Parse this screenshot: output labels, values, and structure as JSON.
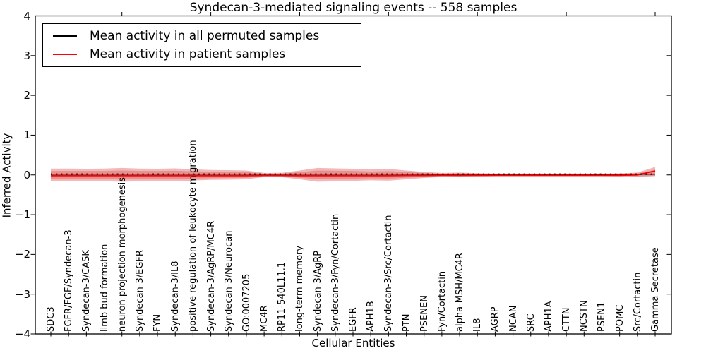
{
  "title": "Syndecan-3-mediated signaling events -- 558 samples",
  "legend": {
    "items": [
      {
        "label": "Mean activity in all permuted samples",
        "color": "#000000"
      },
      {
        "label": "Mean activity in patient samples",
        "color": "#ff0000"
      }
    ]
  },
  "axes": {
    "ylabel": "Inferred Activity",
    "xlabel": "Cellular Entities",
    "yticks": [
      "4",
      "3",
      "2",
      "1",
      "0",
      "−1",
      "−2",
      "−3",
      "−4"
    ],
    "ytick_values": [
      4,
      3,
      2,
      1,
      0,
      -1,
      -2,
      -3,
      -4
    ]
  },
  "chart_data": {
    "type": "line_with_band",
    "title": "Syndecan-3-mediated signaling events -- 558 samples",
    "xlabel": "Cellular Entities",
    "ylabel": "Inferred Activity",
    "ylim": [
      -4,
      4
    ],
    "grid": false,
    "legend_position": "upper left",
    "categories": [
      "SDC3",
      "FGFR/FGF/Syndecan-3",
      "Syndecan-3/CASK",
      "limb bud formation",
      "neuron projection morphogenesis",
      "Syndecan-3/EGFR",
      "FYN",
      "Syndecan-3/IL8",
      "positive regulation of leukocyte migration",
      "Syndecan-3/AgRP/MC4R",
      "Syndecan-3/Neurocan",
      "GO:0007205",
      "MC4R",
      "RP11-540L11.1",
      "long-term memory",
      "Syndecan-3/AgRP",
      "Syndecan-3/Fyn/Cortactin",
      "EGFR",
      "APH1B",
      "Syndecan-3/Src/Cortactin",
      "PTN",
      "PSENEN",
      "Fyn/Cortactin",
      "alpha-MSH/MC4R",
      "IL8",
      "AGRP",
      "NCAN",
      "SRC",
      "APH1A",
      "CTTN",
      "NCSTN",
      "PSEN1",
      "POMC",
      "Src/Cortactin",
      "Gamma Secretase"
    ],
    "series": [
      {
        "name": "Mean activity in all permuted samples",
        "color": "#000000",
        "style": "solid_plus_dotted",
        "values": [
          0,
          0,
          0,
          0,
          0,
          0,
          0,
          0,
          0,
          0,
          0,
          0,
          0,
          0,
          0,
          0,
          0,
          0,
          0,
          0,
          0,
          0,
          0,
          0,
          0,
          0,
          0,
          0,
          0,
          0,
          0,
          0,
          0,
          0,
          0
        ]
      },
      {
        "name": "Mean activity in patient samples",
        "color": "#ff0000",
        "style": "solid",
        "values": [
          -0.02,
          -0.02,
          -0.02,
          -0.02,
          -0.02,
          -0.02,
          -0.02,
          -0.02,
          -0.02,
          -0.02,
          -0.02,
          -0.02,
          -0.015,
          -0.015,
          -0.02,
          -0.02,
          -0.02,
          -0.02,
          -0.02,
          -0.02,
          -0.015,
          -0.015,
          -0.01,
          -0.01,
          -0.01,
          -0.01,
          -0.01,
          -0.01,
          -0.01,
          -0.01,
          -0.01,
          -0.01,
          -0.01,
          0.0,
          0.1
        ]
      }
    ],
    "band": {
      "name": "patient activity spread",
      "color": "#dd5555",
      "layer_opacity": 0.42,
      "outer_upper": [
        0.16,
        0.16,
        0.155,
        0.16,
        0.175,
        0.16,
        0.155,
        0.165,
        0.14,
        0.125,
        0.12,
        0.11,
        0.05,
        0.055,
        0.11,
        0.175,
        0.165,
        0.155,
        0.135,
        0.15,
        0.11,
        0.075,
        0.05,
        0.06,
        0.045,
        0.035,
        0.035,
        0.035,
        0.035,
        0.035,
        0.035,
        0.035,
        0.04,
        0.06,
        0.2
      ],
      "outer_lower": [
        -0.16,
        -0.16,
        -0.155,
        -0.16,
        -0.17,
        -0.16,
        -0.155,
        -0.165,
        -0.14,
        -0.125,
        -0.12,
        -0.11,
        -0.05,
        -0.055,
        -0.11,
        -0.17,
        -0.16,
        -0.15,
        -0.135,
        -0.145,
        -0.11,
        -0.075,
        -0.05,
        -0.06,
        -0.045,
        -0.035,
        -0.035,
        -0.035,
        -0.035,
        -0.035,
        -0.035,
        -0.035,
        -0.04,
        -0.05,
        -0.03
      ],
      "inner_upper": [
        0.1,
        0.1,
        0.1,
        0.1,
        0.11,
        0.1,
        0.1,
        0.105,
        0.09,
        0.08,
        0.075,
        0.07,
        0.03,
        0.035,
        0.07,
        0.11,
        0.105,
        0.1,
        0.085,
        0.095,
        0.07,
        0.05,
        0.03,
        0.04,
        0.03,
        0.022,
        0.022,
        0.022,
        0.022,
        0.022,
        0.022,
        0.022,
        0.025,
        0.04,
        0.13
      ],
      "inner_lower": [
        -0.1,
        -0.1,
        -0.1,
        -0.1,
        -0.105,
        -0.1,
        -0.1,
        -0.105,
        -0.09,
        -0.08,
        -0.075,
        -0.07,
        -0.03,
        -0.035,
        -0.07,
        -0.105,
        -0.1,
        -0.095,
        -0.085,
        -0.09,
        -0.07,
        -0.05,
        -0.03,
        -0.04,
        -0.03,
        -0.022,
        -0.022,
        -0.022,
        -0.022,
        -0.022,
        -0.022,
        -0.022,
        -0.025,
        -0.035,
        -0.02
      ]
    }
  }
}
